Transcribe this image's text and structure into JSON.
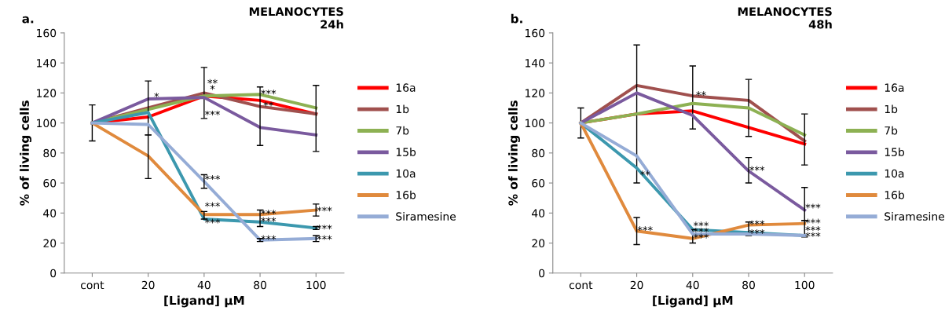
{
  "chart_data": [
    {
      "type": "line",
      "title": "MELANOCYTES\n24h",
      "xlabel": "[Ligand] µM",
      "ylabel": "% of living cells",
      "categories": [
        "cont",
        "20",
        "40",
        "80",
        "100"
      ],
      "ylim": [
        0,
        160
      ],
      "yticks": [
        0,
        20,
        40,
        60,
        80,
        100,
        120,
        140,
        160
      ],
      "grid": false,
      "legend": "right",
      "marker": "none",
      "line_style": "solid",
      "series": [
        {
          "name": "16a",
          "color": "#ff0000",
          "values": [
            100,
            104,
            118,
            115,
            106
          ],
          "errors": [
            12,
            null,
            null,
            null,
            null
          ]
        },
        {
          "name": "1b",
          "color": "#a0504e",
          "values": [
            100,
            110,
            120,
            111,
            106
          ],
          "errors": [
            null,
            null,
            17,
            null,
            null
          ]
        },
        {
          "name": "7b",
          "color": "#8db153",
          "values": [
            100,
            109,
            118,
            119,
            110
          ],
          "errors": [
            null,
            null,
            null,
            null,
            null
          ]
        },
        {
          "name": "15b",
          "color": "#7a5a9e",
          "values": [
            100,
            116,
            117,
            97,
            92
          ],
          "errors": [
            null,
            [
              92,
              128
            ],
            null,
            [
              85,
              124
            ],
            [
              81,
              125
            ]
          ]
        },
        {
          "name": "10a",
          "color": "#3c98ae",
          "values": [
            100,
            107,
            36,
            34,
            30
          ],
          "errors": [
            null,
            null,
            null,
            null,
            1
          ]
        },
        {
          "name": "16b",
          "color": "#e08a3d",
          "values": [
            100,
            78,
            39,
            39,
            42
          ],
          "errors": [
            null,
            [
              63,
              92
            ],
            [
              36,
              41
            ],
            [
              31,
              42
            ],
            4
          ]
        },
        {
          "name": "Siramesine",
          "color": "#95acd6",
          "values": [
            100,
            99,
            61,
            22,
            23
          ],
          "errors": [
            null,
            null,
            4.5,
            1,
            2
          ]
        }
      ],
      "annotations": [
        "a.",
        {
          "text": "*",
          "x": "20",
          "y": 117
        },
        {
          "text": "*",
          "x": "40",
          "y": 122
        },
        {
          "text": "**",
          "x": "40",
          "y": 126
        },
        {
          "text": "***",
          "x": "40",
          "y": 105
        },
        {
          "text": "***",
          "x": "40",
          "y": 62
        },
        {
          "text": "***",
          "x": "40",
          "y": 44
        },
        {
          "text": "***",
          "x": "40",
          "y": 33
        },
        {
          "text": "***",
          "x": "80",
          "y": 119
        },
        {
          "text": "**",
          "x": "80",
          "y": 111
        },
        {
          "text": "***",
          "x": "80",
          "y": 39
        },
        {
          "text": "***",
          "x": "80",
          "y": 34
        },
        {
          "text": "***",
          "x": "80",
          "y": 22
        },
        {
          "text": "***",
          "x": "100",
          "y": 41
        },
        {
          "text": "***",
          "x": "100",
          "y": 29
        },
        {
          "text": "***",
          "x": "100",
          "y": 22
        }
      ]
    },
    {
      "type": "line",
      "title": "MELANOCYTES\n48h",
      "xlabel": "[Ligand] µM",
      "ylabel": "% of living cells",
      "categories": [
        "cont",
        "20",
        "40",
        "80",
        "100"
      ],
      "ylim": [
        0,
        160
      ],
      "yticks": [
        0,
        20,
        40,
        60,
        80,
        100,
        120,
        140,
        160
      ],
      "grid": false,
      "legend": "right",
      "marker": "none",
      "line_style": "solid",
      "series": [
        {
          "name": "16a",
          "color": "#ff0000",
          "values": [
            100,
            106,
            108,
            97,
            86
          ],
          "errors": [
            10,
            null,
            null,
            null,
            null
          ]
        },
        {
          "name": "1b",
          "color": "#a0504e",
          "values": [
            100,
            125,
            118,
            115,
            88
          ],
          "errors": [
            null,
            [
              60,
              152
            ],
            [
              96,
              138
            ],
            [
              91,
              129
            ],
            null
          ]
        },
        {
          "name": "7b",
          "color": "#8db153",
          "values": [
            100,
            106,
            113,
            110,
            92
          ],
          "errors": [
            null,
            null,
            null,
            null,
            [
              72,
              106
            ]
          ]
        },
        {
          "name": "15b",
          "color": "#7a5a9e",
          "values": [
            100,
            120,
            105,
            68,
            42
          ],
          "errors": [
            null,
            null,
            null,
            [
              60,
              77
            ],
            [
              35,
              57
            ]
          ]
        },
        {
          "name": "10a",
          "color": "#3c98ae",
          "values": [
            100,
            70,
            29,
            27,
            25
          ],
          "errors": [
            null,
            null,
            null,
            null,
            null
          ]
        },
        {
          "name": "16b",
          "color": "#e08a3d",
          "values": [
            100,
            28,
            23,
            32,
            33
          ],
          "errors": [
            null,
            9,
            [
              20,
              29
            ],
            [
              25,
              34
            ],
            [
              24,
              35
            ]
          ]
        },
        {
          "name": "Siramesine",
          "color": "#95acd6",
          "values": [
            100,
            78,
            26,
            26,
            25
          ],
          "errors": [
            null,
            null,
            null,
            null,
            null
          ]
        }
      ],
      "annotations": [
        "b.",
        {
          "text": "**",
          "x": "20",
          "y": 65
        },
        {
          "text": "***",
          "x": "20",
          "y": 28
        },
        {
          "text": "**",
          "x": "40",
          "y": 118
        },
        {
          "text": "***",
          "x": "40",
          "y": 27
        },
        {
          "text": "***",
          "x": "40",
          "y": 31
        },
        {
          "text": "***",
          "x": "40",
          "y": 23
        },
        {
          "text": "***",
          "x": "80",
          "y": 68
        },
        {
          "text": "***",
          "x": "80",
          "y": 32
        },
        {
          "text": "***",
          "x": "80",
          "y": 26
        },
        {
          "text": "***",
          "x": "100",
          "y": 43
        },
        {
          "text": "***",
          "x": "100",
          "y": 33
        },
        {
          "text": "***",
          "x": "100",
          "y": 28
        },
        {
          "text": "***",
          "x": "100",
          "y": 24
        }
      ]
    }
  ]
}
